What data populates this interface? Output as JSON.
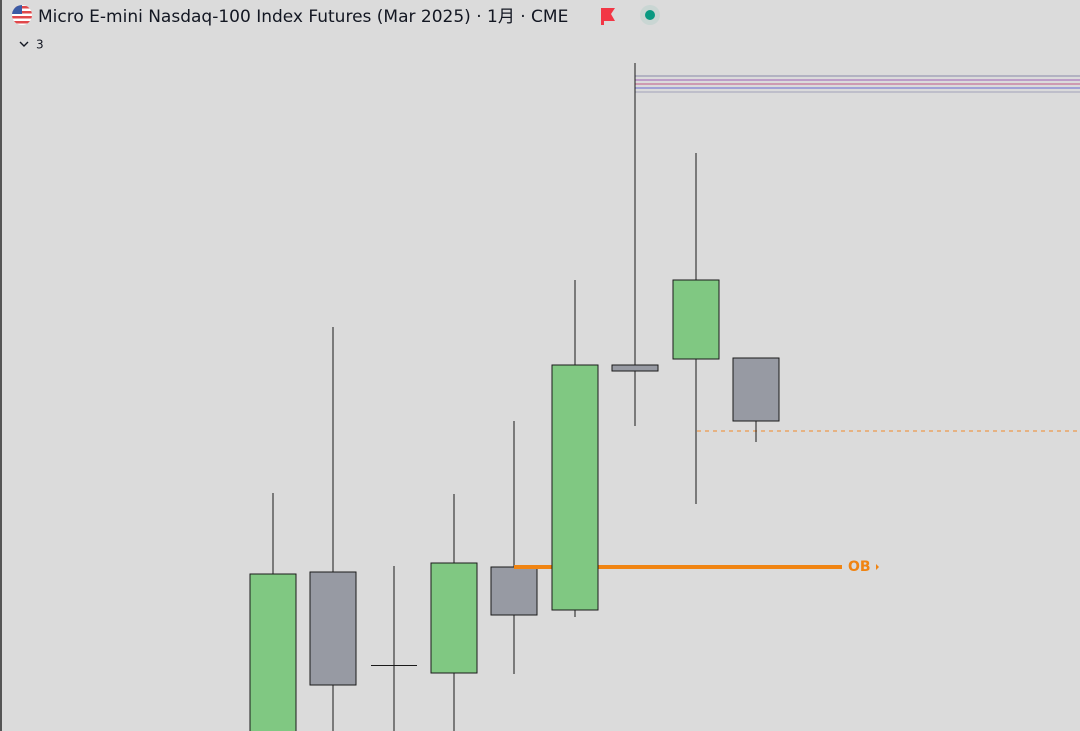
{
  "header": {
    "title": "Micro E-mini Nasdaq-100 Index Futures (Mar 2025) · 1月 · CME",
    "indicator_count": "3"
  },
  "annotations": {
    "order_block_label": "OB"
  }
}
